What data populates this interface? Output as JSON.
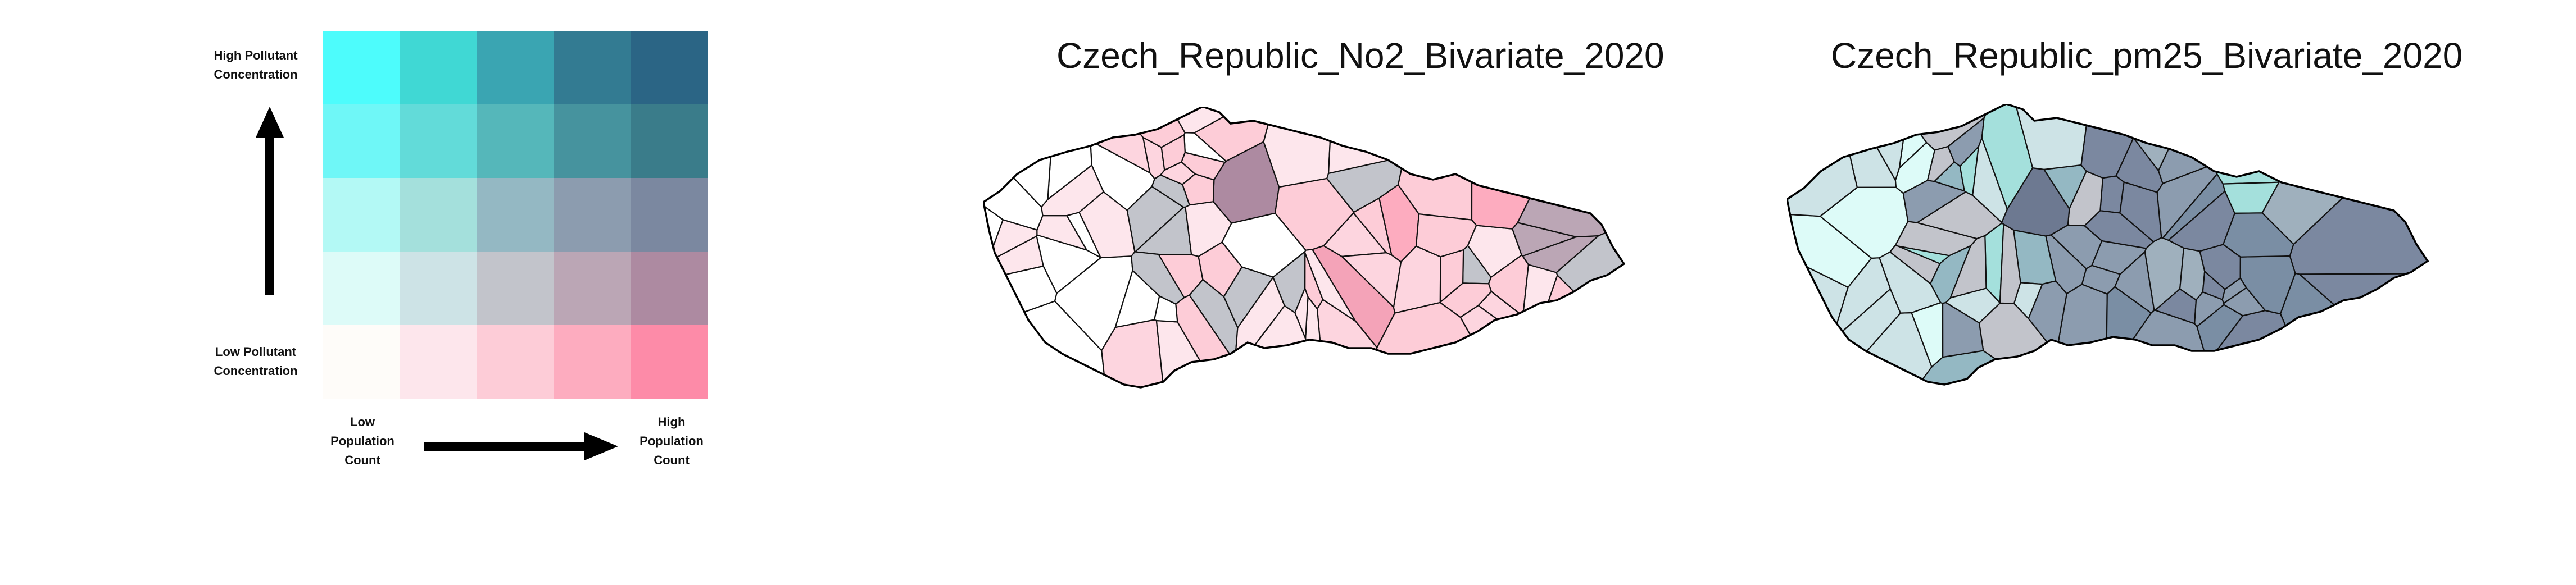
{
  "legend": {
    "y_high_line1": "High Pollutant",
    "y_high_line2": "Concentration",
    "y_low_line1": "Low Pollutant",
    "y_low_line2": "Concentration",
    "x_low_line1": "Low",
    "x_low_line2": "Population",
    "x_low_line3": "Count",
    "x_high_line1": "High",
    "x_high_line2": "Population",
    "x_high_line3": "Count",
    "colors": [
      [
        "#4dfcfc",
        "#40d8d4",
        "#3aa5b2",
        "#337b92",
        "#2b6585"
      ],
      [
        "#6ff7f7",
        "#62dbd9",
        "#55b7ba",
        "#46939e",
        "#3a7c8a"
      ],
      [
        "#b3f9f5",
        "#a4e0dc",
        "#94b8c3",
        "#8c9caf",
        "#7b88a0"
      ],
      [
        "#ddfbf8",
        "#cde3e6",
        "#c2c4cb",
        "#bba6b5",
        "#ad8aa1"
      ],
      [
        "#fefcf9",
        "#fde6ec",
        "#fdccd7",
        "#fdacbf",
        "#fd8ba8"
      ]
    ]
  },
  "maps": [
    {
      "title": "Czech_Republic_No2_Bivariate_2020",
      "palette": [
        "#ffffff",
        "#fde6ec",
        "#fdccd7",
        "#fdacbf",
        "#f4a3b8",
        "#c2c4cb",
        "#bba6b5",
        "#ad8aa1",
        "#8c7a92",
        "#fdd5df"
      ]
    },
    {
      "title": "Czech_Republic_pm25_Bivariate_2020",
      "palette": [
        "#ddfbf8",
        "#cde3e6",
        "#a4e0dc",
        "#94b8c3",
        "#8c9caf",
        "#7b88a0",
        "#c2c4cb",
        "#7a8ea4",
        "#6d7991",
        "#9fb0bd"
      ]
    }
  ]
}
